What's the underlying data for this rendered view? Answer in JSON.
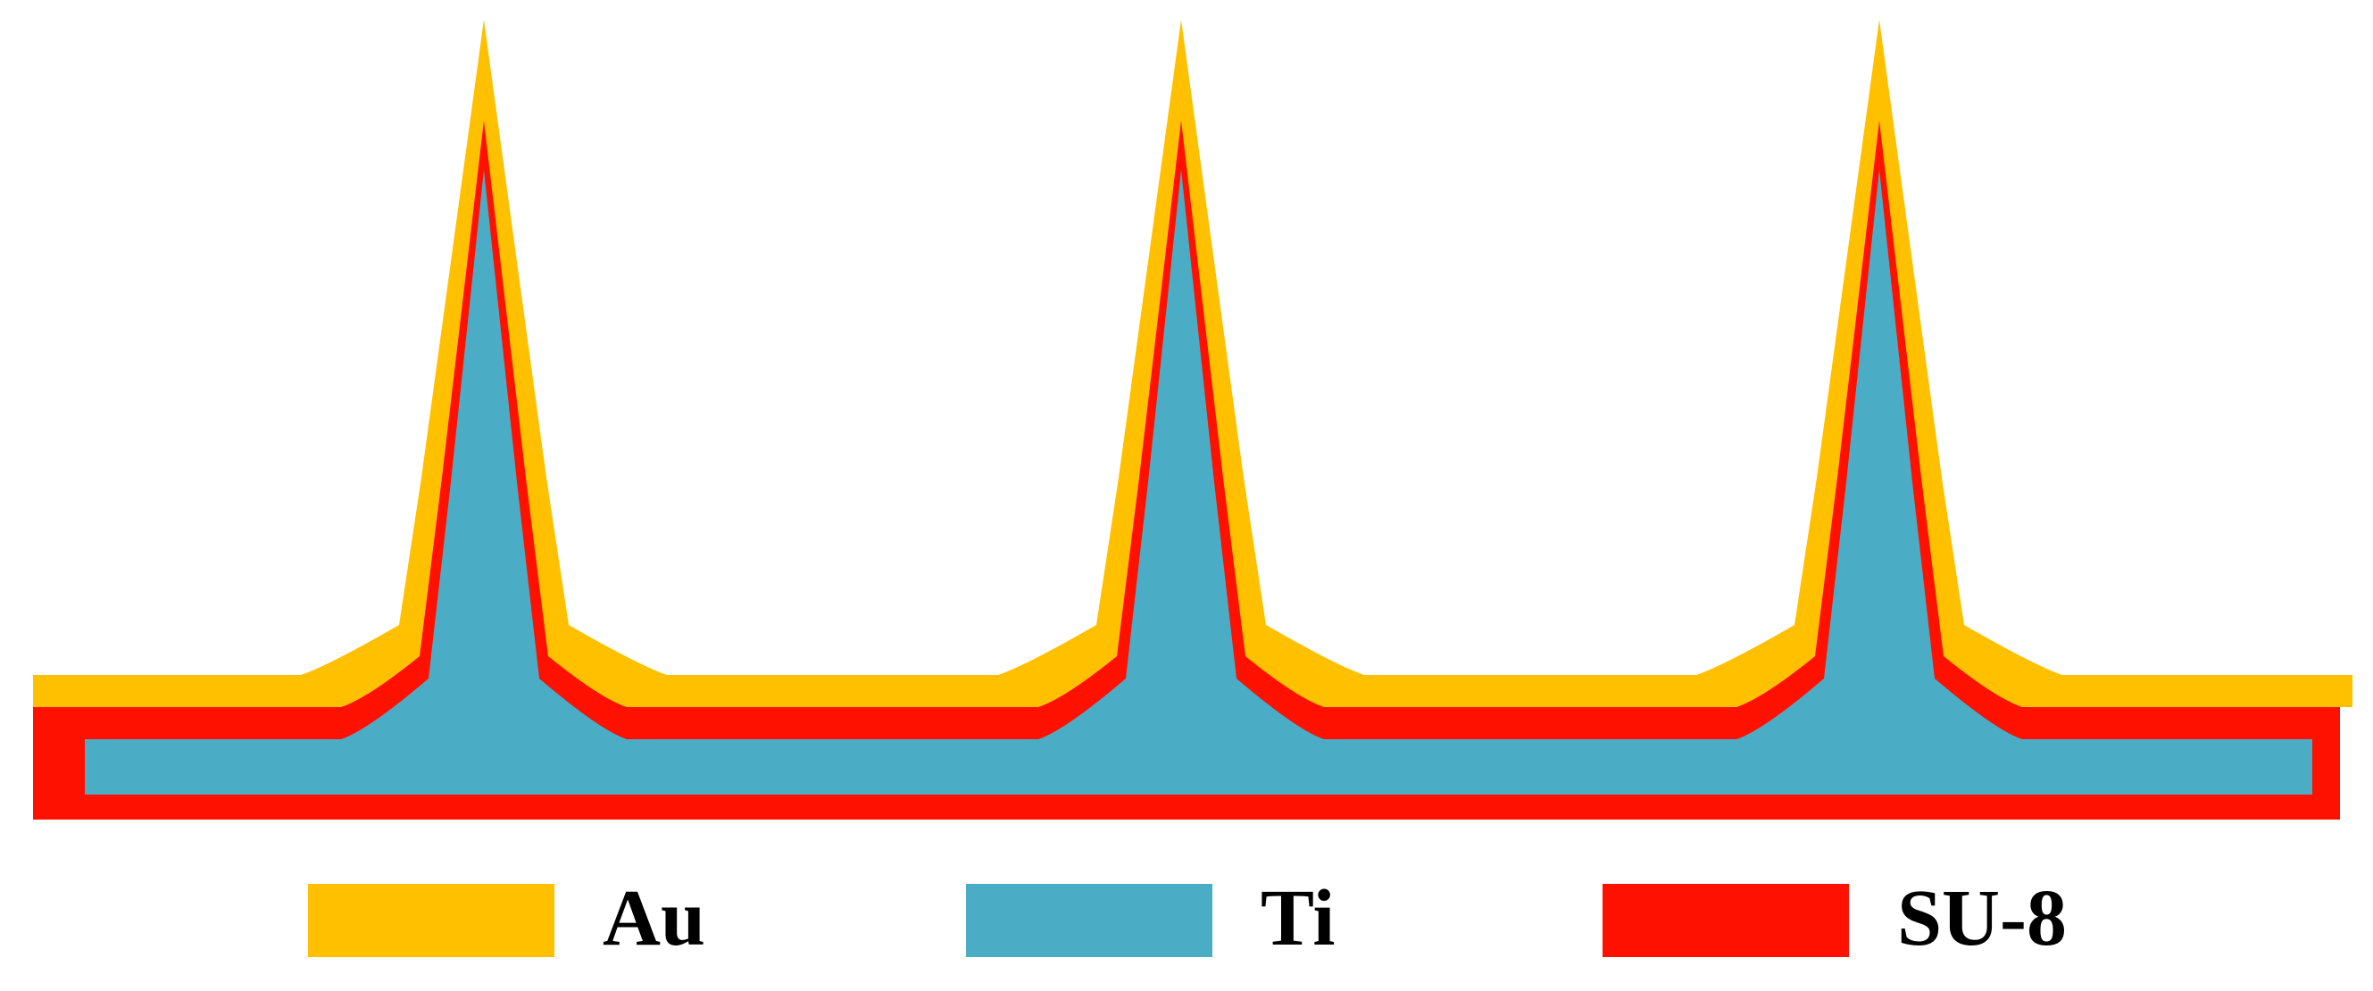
{
  "colors": {
    "au": "#FFC000",
    "ti": "#4BACC6",
    "su8": "#FF1100",
    "background": "#FFFFFF"
  },
  "diagram": {
    "peak_count": 3
  },
  "legend": {
    "items": [
      {
        "label": "Au",
        "color": "#FFC000"
      },
      {
        "label": "Ti",
        "color": "#4BACC6"
      },
      {
        "label": "SU-8",
        "color": "#FF1100"
      }
    ]
  }
}
